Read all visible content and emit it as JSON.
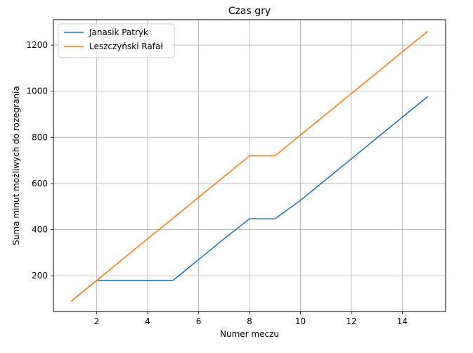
{
  "chart_data": {
    "type": "line",
    "title": "Czas gry",
    "xlabel": "Numer meczu",
    "ylabel": "Suma minut możliwych do rozegrania",
    "xlim": [
      0.3,
      15.7
    ],
    "ylim": [
      45,
      1310
    ],
    "xticks": [
      2,
      4,
      6,
      8,
      10,
      12,
      14
    ],
    "yticks": [
      200,
      400,
      600,
      800,
      1000,
      1200
    ],
    "grid": true,
    "legend_position": "top-left",
    "series": [
      {
        "name": "Janasik Patryk",
        "color": "#1f77b4",
        "x": [
          1,
          2,
          3,
          4,
          5,
          6,
          7,
          8,
          9,
          10,
          11,
          12,
          13,
          14,
          15
        ],
        "y": [
          90,
          180,
          180,
          180,
          180,
          270,
          360,
          447,
          447,
          527,
          617,
          707,
          797,
          887,
          977
        ]
      },
      {
        "name": "Leszczyński Rafał",
        "color": "#ff7f0e",
        "x": [
          1,
          2,
          3,
          4,
          5,
          6,
          7,
          8,
          9,
          10,
          11,
          12,
          13,
          14,
          15
        ],
        "y": [
          90,
          180,
          270,
          360,
          450,
          540,
          630,
          720,
          720,
          810,
          900,
          990,
          1080,
          1170,
          1260
        ]
      }
    ]
  }
}
